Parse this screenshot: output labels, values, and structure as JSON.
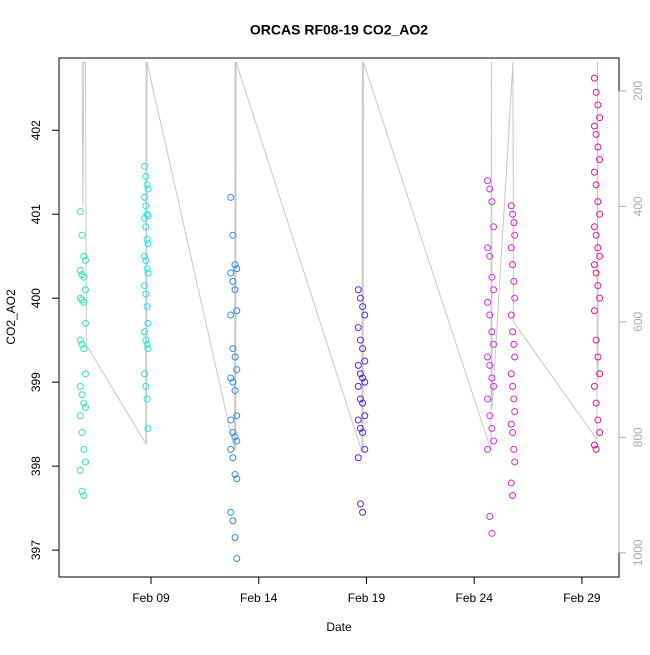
{
  "chart_data": {
    "type": "scatter",
    "title": "ORCAS RF08-19 CO2_AO2",
    "x_label": "Date",
    "y_label": "CO2_AO2",
    "xlim": [
      4.73,
      30.72
    ],
    "xticks": [
      {
        "value": 9,
        "label": "Feb 09"
      },
      {
        "value": 14,
        "label": "Feb 14"
      },
      {
        "value": 19,
        "label": "Feb 19"
      },
      {
        "value": 24,
        "label": "Feb 24"
      },
      {
        "value": 29,
        "label": "Feb 29"
      }
    ],
    "ylim": [
      396.68,
      402.86
    ],
    "yticks": [
      397,
      398,
      399,
      400,
      401,
      402
    ],
    "y2lim": [
      1042,
      143
    ],
    "y2ticks": [
      200,
      400,
      600,
      800,
      1000
    ],
    "y2tick_color": "#aaaaaa",
    "series": [
      {
        "color": "#33e6b3",
        "x": [
          5.72,
          5.8,
          5.88,
          5.96,
          5.72,
          5.8,
          5.88,
          5.96,
          5.72,
          5.8,
          5.88,
          5.96,
          5.72,
          5.8,
          5.88,
          5.96,
          5.72,
          5.8,
          5.88,
          5.96,
          5.72,
          5.8,
          5.88,
          5.96,
          5.72,
          5.8,
          5.88
        ],
        "values": [
          401.03,
          400.75,
          400.5,
          400.45,
          400.33,
          400.28,
          400.25,
          400.1,
          400.0,
          399.98,
          399.95,
          399.7,
          399.5,
          399.45,
          399.4,
          399.1,
          398.95,
          398.85,
          398.75,
          398.7,
          398.6,
          398.4,
          398.2,
          398.05,
          397.95,
          397.7,
          397.65
        ]
      },
      {
        "color": "#22e6e6",
        "x": [
          8.7,
          8.76,
          8.82,
          8.86,
          8.7,
          8.76,
          8.82,
          8.86,
          8.7,
          8.76,
          8.82,
          8.86,
          8.7,
          8.76,
          8.82,
          8.86,
          8.7,
          8.76,
          8.82,
          8.86,
          8.7,
          8.76,
          8.82,
          8.86,
          8.7,
          8.76,
          8.82,
          8.86
        ],
        "values": [
          401.57,
          401.45,
          401.35,
          401.3,
          401.2,
          401.1,
          401.0,
          400.98,
          400.95,
          400.85,
          400.7,
          400.65,
          400.5,
          400.45,
          400.35,
          400.3,
          400.15,
          400.05,
          399.9,
          399.7,
          399.6,
          399.5,
          399.45,
          399.4,
          399.1,
          398.95,
          398.8,
          398.45
        ]
      },
      {
        "color": "#2e8ef0",
        "x": [
          12.7,
          12.8,
          12.9,
          12.98,
          12.7,
          12.8,
          12.9,
          12.98,
          12.7,
          12.8,
          12.9,
          12.98,
          12.7,
          12.8,
          12.9,
          12.98,
          12.7,
          12.8,
          12.9,
          12.98,
          12.7,
          12.8,
          12.9,
          12.98,
          12.7,
          12.8,
          12.9,
          12.98
        ],
        "values": [
          401.2,
          400.75,
          400.4,
          400.35,
          400.3,
          400.2,
          400.1,
          399.85,
          399.8,
          399.4,
          399.3,
          399.15,
          399.05,
          399.0,
          398.9,
          398.6,
          398.55,
          398.4,
          398.35,
          398.3,
          398.2,
          398.1,
          397.9,
          397.85,
          397.45,
          397.35,
          397.15,
          396.9
        ]
      },
      {
        "color": "#5522ee",
        "x": [
          18.62,
          18.72,
          18.82,
          18.92,
          18.62,
          18.72,
          18.82,
          18.92,
          18.62,
          18.72,
          18.82,
          18.92,
          18.62,
          18.72,
          18.82,
          18.92,
          18.62,
          18.72,
          18.82,
          18.92,
          18.62,
          18.72,
          18.82
        ],
        "values": [
          400.1,
          400.0,
          399.9,
          399.8,
          399.65,
          399.5,
          399.4,
          399.25,
          399.2,
          399.1,
          399.05,
          399.0,
          398.95,
          398.8,
          398.75,
          398.6,
          398.55,
          398.45,
          398.4,
          398.2,
          398.1,
          397.55,
          397.45
        ]
      },
      {
        "color": "#cc33ee",
        "x": [
          24.62,
          24.72,
          24.82,
          24.9,
          24.62,
          24.72,
          24.82,
          24.9,
          24.62,
          24.72,
          24.82,
          24.9,
          24.62,
          24.72,
          24.82,
          24.9,
          24.62,
          24.72,
          24.82,
          24.9,
          24.62,
          24.72,
          24.82
        ],
        "values": [
          401.4,
          401.3,
          401.15,
          400.85,
          400.6,
          400.5,
          400.25,
          400.1,
          399.95,
          399.8,
          399.6,
          399.45,
          399.3,
          399.2,
          399.05,
          398.95,
          398.8,
          398.6,
          398.45,
          398.3,
          398.2,
          397.4,
          397.2
        ]
      },
      {
        "color": "#dd22cc",
        "x": [
          25.72,
          25.78,
          25.84,
          25.88,
          25.72,
          25.78,
          25.84,
          25.88,
          25.72,
          25.78,
          25.84,
          25.88,
          25.72,
          25.78,
          25.84,
          25.88,
          25.72,
          25.78,
          25.84,
          25.88,
          25.72,
          25.78
        ],
        "values": [
          401.1,
          401.0,
          400.9,
          400.75,
          400.6,
          400.4,
          400.2,
          400.0,
          399.8,
          399.6,
          399.45,
          399.3,
          399.1,
          398.95,
          398.8,
          398.65,
          398.5,
          398.4,
          398.2,
          398.05,
          397.8,
          397.65
        ]
      },
      {
        "color": "#ee1199",
        "x": [
          29.58,
          29.66,
          29.74,
          29.82,
          29.58,
          29.66,
          29.74,
          29.82,
          29.58,
          29.66,
          29.74,
          29.82,
          29.58,
          29.66,
          29.74,
          29.82,
          29.58,
          29.66,
          29.74,
          29.82,
          29.58,
          29.66,
          29.74,
          29.82,
          29.58,
          29.66,
          29.74,
          29.82,
          29.58,
          29.66
        ],
        "values": [
          402.62,
          402.45,
          402.3,
          402.15,
          402.05,
          401.95,
          401.8,
          401.65,
          401.5,
          401.35,
          401.15,
          401.0,
          400.85,
          400.75,
          400.6,
          400.5,
          400.4,
          400.3,
          400.15,
          400.0,
          399.85,
          399.5,
          399.3,
          399.1,
          398.95,
          398.75,
          398.55,
          398.4,
          398.25,
          398.2
        ]
      },
      {
        "type": "line",
        "axis": "y2",
        "color": "#c8c8c8",
        "x": [
          5.8,
          5.84,
          5.88,
          5.96,
          6.0,
          8.76,
          8.77,
          8.79,
          8.81,
          12.88,
          12.9,
          12.93,
          12.95,
          18.79,
          18.81,
          18.84,
          18.86,
          24.78,
          24.8,
          24.83,
          25.8,
          25.82,
          29.7,
          29.72,
          29.75
        ],
        "values": [
          150,
          400,
          150,
          150,
          640,
          811,
          150,
          811,
          150,
          822,
          150,
          822,
          150,
          825,
          150,
          825,
          150,
          822,
          150,
          750,
          150,
          600,
          804,
          150,
          700
        ]
      }
    ]
  }
}
